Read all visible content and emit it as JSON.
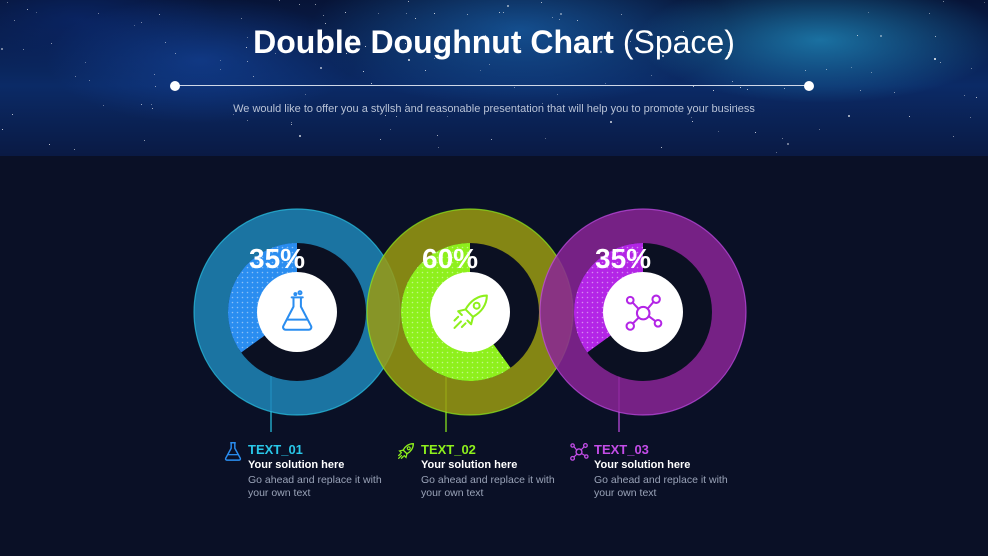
{
  "header": {
    "title_bold": "Double Doughnut Chart",
    "title_light": "(Space)",
    "subtitle": "We would like to offer you a stylish and reasonable presentation that will help you to promote your business"
  },
  "colors": {
    "background": "#0a1026",
    "outer_blue": "#1e86b8",
    "outer_olive": "#9a9b12",
    "outer_purple": "#8a2596",
    "inner_blue": "#2a8df0",
    "inner_green": "#8ef01c",
    "inner_purple": "#b325e6",
    "label_cyan": "#29c7e8",
    "label_green": "#8ef01c",
    "label_purple": "#c44de8"
  },
  "chart_data": {
    "type": "pie",
    "series": [
      {
        "name": "TEXT_01",
        "value": 35,
        "label": "35%",
        "icon": "flask-icon"
      },
      {
        "name": "TEXT_02",
        "value": 60,
        "label": "60%",
        "icon": "rocket-icon"
      },
      {
        "name": "TEXT_03",
        "value": 35,
        "label": "35%",
        "icon": "molecule-icon"
      }
    ]
  },
  "labels": [
    {
      "title": "TEXT_01",
      "heading": "Your solution here",
      "body": "Go ahead and replace it with your own text"
    },
    {
      "title": "TEXT_02",
      "heading": "Your solution here",
      "body": "Go ahead and replace it with your own text"
    },
    {
      "title": "TEXT_03",
      "heading": "Your solution here",
      "body": "Go ahead and replace it with your own text"
    }
  ]
}
